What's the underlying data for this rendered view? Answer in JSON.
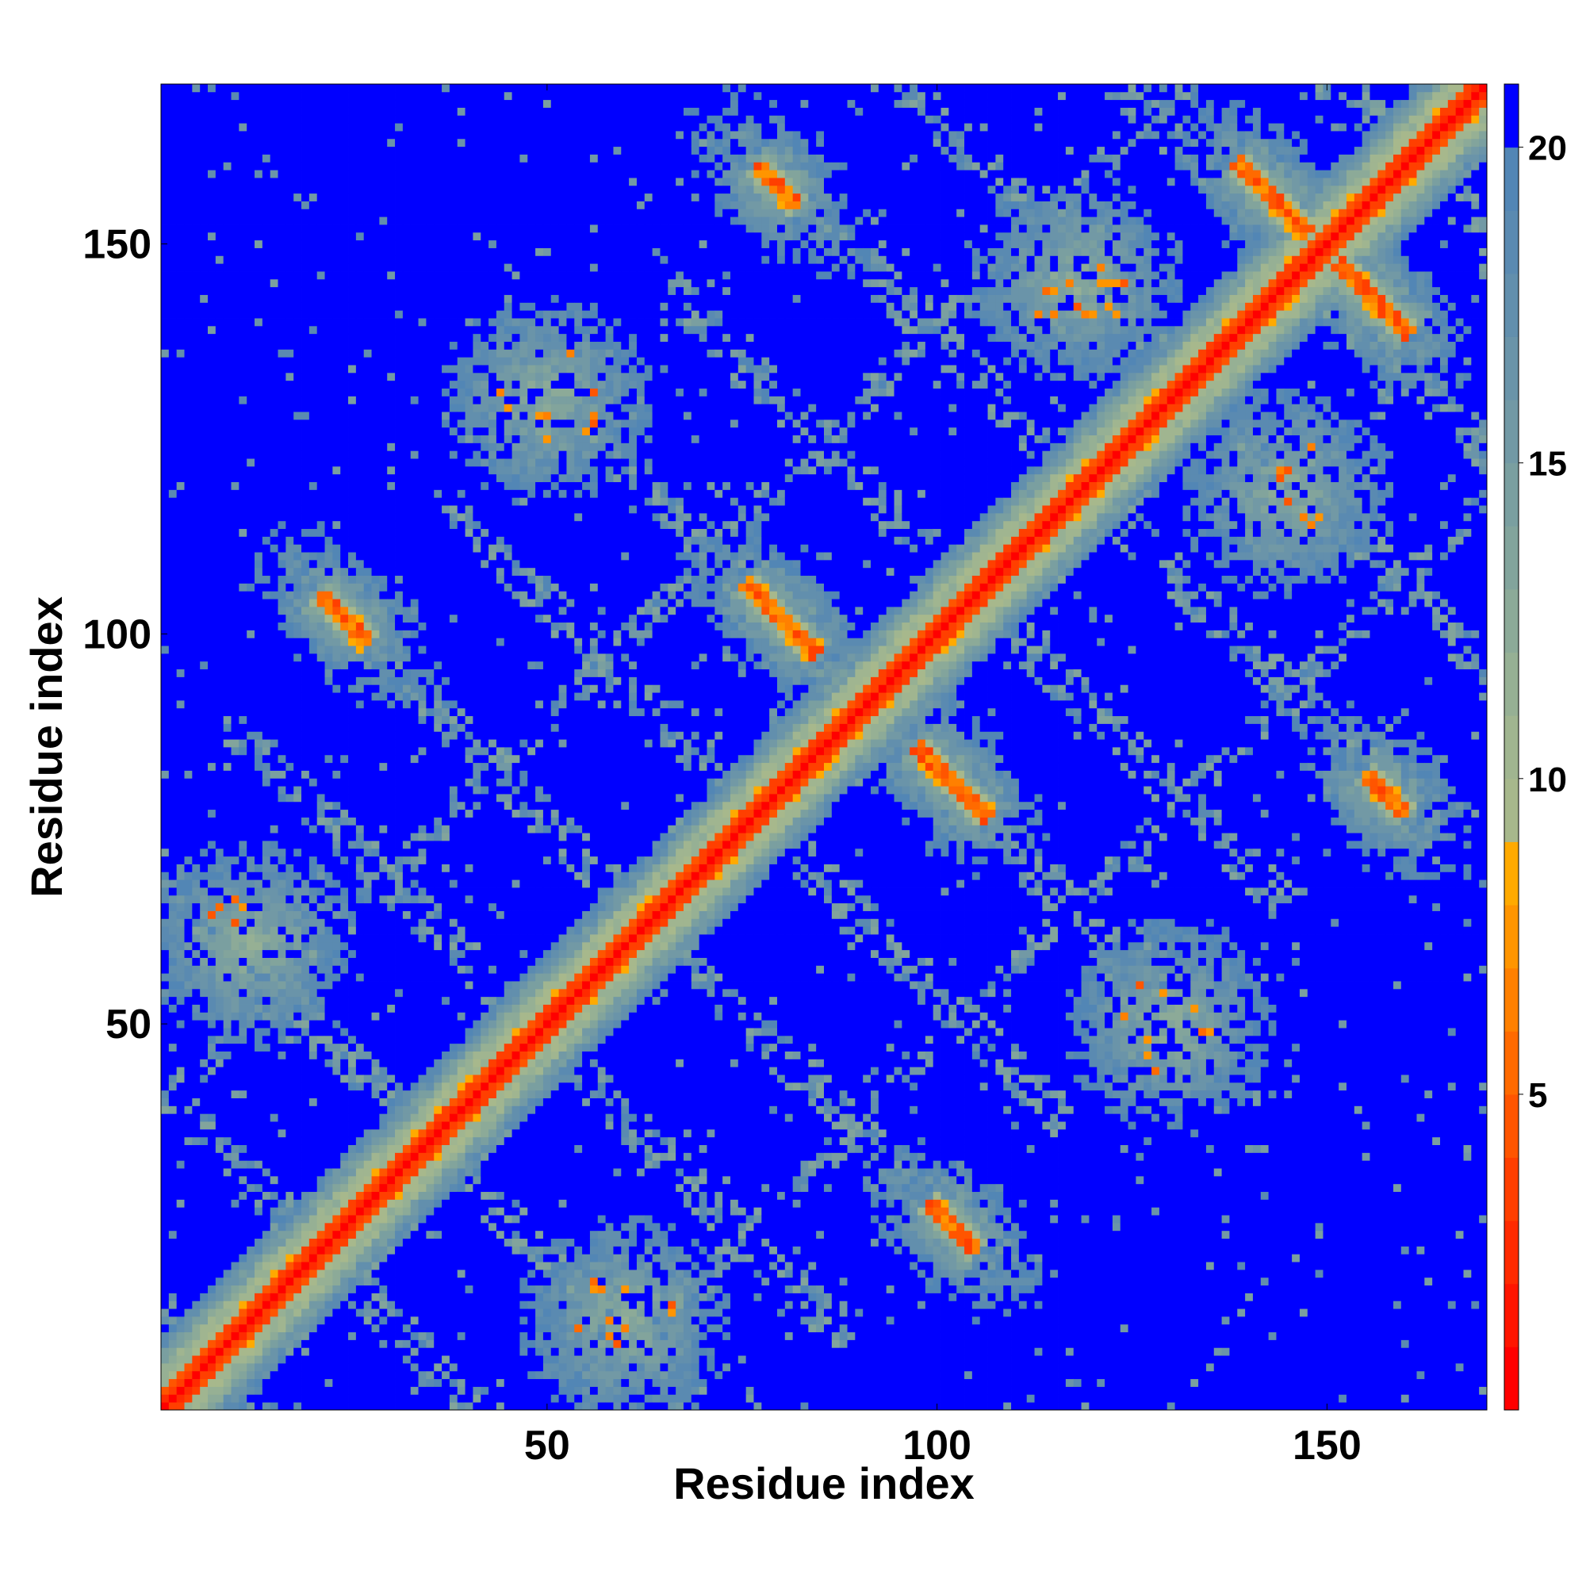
{
  "chart_data": {
    "type": "heatmap",
    "title": "",
    "xlabel": "Residue index",
    "ylabel": "Residue index",
    "n_residues": 170,
    "xlim": [
      1,
      170
    ],
    "ylim": [
      1,
      170
    ],
    "x_ticks": [
      50,
      100,
      150
    ],
    "y_ticks": [
      50,
      100,
      150
    ],
    "x_tick_labels": [
      "50",
      "100",
      "150"
    ],
    "y_tick_labels": [
      "50",
      "100",
      "150"
    ],
    "grid": false,
    "colorbar": {
      "min": 0,
      "max": 21,
      "ticks": [
        5,
        10,
        15,
        20
      ],
      "tick_labels": [
        "5",
        "10",
        "15",
        "20"
      ],
      "levels": [
        {
          "lo": 0,
          "hi": 1,
          "color": "#ff0000"
        },
        {
          "lo": 1,
          "hi": 2,
          "color": "#ff1500"
        },
        {
          "lo": 2,
          "hi": 3,
          "color": "#ff2a00"
        },
        {
          "lo": 3,
          "hi": 4,
          "color": "#ff3f00"
        },
        {
          "lo": 4,
          "hi": 5,
          "color": "#ff5500"
        },
        {
          "lo": 5,
          "hi": 6,
          "color": "#ff6a00"
        },
        {
          "lo": 6,
          "hi": 7,
          "color": "#ff8000"
        },
        {
          "lo": 7,
          "hi": 8,
          "color": "#ff9500"
        },
        {
          "lo": 8,
          "hi": 9,
          "color": "#ffaa00"
        },
        {
          "lo": 9,
          "hi": 10,
          "color": "#a7b88c"
        },
        {
          "lo": 10,
          "hi": 11,
          "color": "#a0b590"
        },
        {
          "lo": 11,
          "hi": 12,
          "color": "#96b094"
        },
        {
          "lo": 12,
          "hi": 13,
          "color": "#8caa98"
        },
        {
          "lo": 13,
          "hi": 14,
          "color": "#82a49c"
        },
        {
          "lo": 14,
          "hi": 15,
          "color": "#7a9fa0"
        },
        {
          "lo": 15,
          "hi": 16,
          "color": "#7299a5"
        },
        {
          "lo": 16,
          "hi": 17,
          "color": "#6a94a9"
        },
        {
          "lo": 17,
          "hi": 18,
          "color": "#628fad"
        },
        {
          "lo": 18,
          "hi": 19,
          "color": "#5a8ab1"
        },
        {
          "lo": 19,
          "hi": 20,
          "color": "#5286b5"
        },
        {
          "lo": 20,
          "hi": 21,
          "color": "#0000ff"
        }
      ]
    },
    "description_of_values": "distance-like value between residue i and j; 0-1 on the diagonal, >20 (blue) for distant pairs",
    "contact_features": [
      {
        "kind": "diagonal_band",
        "x_range": [
          1,
          170
        ]
      },
      {
        "kind": "anti_diagonal",
        "x_range": [
          76,
          84
        ],
        "y_range": [
          98,
          106
        ]
      },
      {
        "kind": "anti_diagonal",
        "x_range": [
          98,
          106
        ],
        "y_range": [
          77,
          85
        ]
      },
      {
        "kind": "anti_diagonal",
        "x_range": [
          21,
          27
        ],
        "y_range": [
          99,
          105
        ]
      },
      {
        "kind": "anti_diagonal",
        "x_range": [
          99,
          105
        ],
        "y_range": [
          21,
          27
        ]
      },
      {
        "kind": "anti_diagonal",
        "x_range": [
          77,
          82
        ],
        "y_range": [
          155,
          160
        ]
      },
      {
        "kind": "anti_diagonal",
        "x_range": [
          155,
          160
        ],
        "y_range": [
          77,
          82
        ]
      },
      {
        "kind": "anti_diagonal",
        "x_range": [
          140,
          146
        ],
        "y_range": [
          152,
          160
        ]
      },
      {
        "kind": "anti_diagonal",
        "x_range": [
          152,
          160
        ],
        "y_range": [
          140,
          146
        ]
      },
      {
        "kind": "cluster",
        "x_center": 50,
        "y_center": 130
      },
      {
        "kind": "cluster",
        "x_center": 130,
        "y_center": 50
      },
      {
        "kind": "cluster",
        "x_center": 118,
        "y_center": 145
      },
      {
        "kind": "cluster",
        "x_center": 145,
        "y_center": 118
      },
      {
        "kind": "cluster",
        "x_center": 12,
        "y_center": 60
      },
      {
        "kind": "cluster",
        "x_center": 60,
        "y_center": 12
      }
    ]
  }
}
